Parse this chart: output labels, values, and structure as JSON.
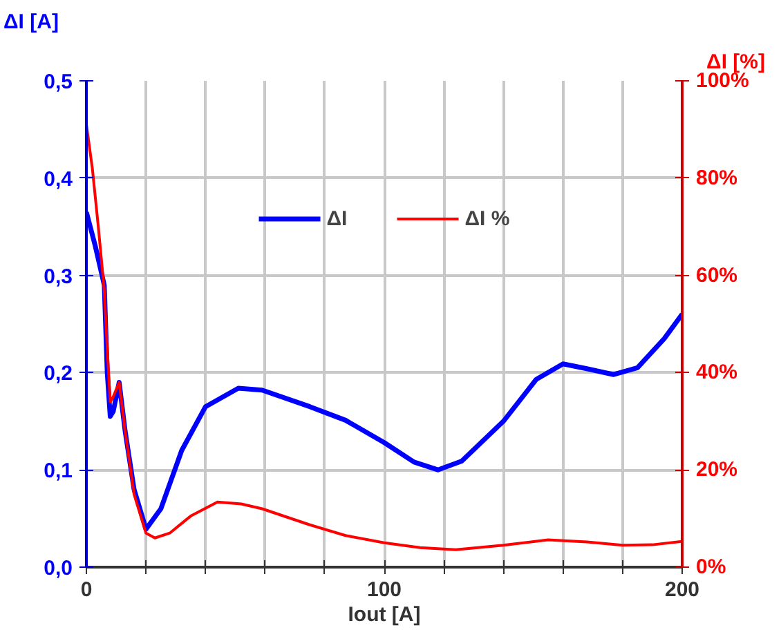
{
  "chart_data": {
    "type": "line",
    "ylabel": "ΔI [A]",
    "y2label": "ΔI [%]",
    "xlabel": "Iout [A]",
    "xlim": [
      0,
      200
    ],
    "xticks": [
      0,
      {
        "value": 20,
        "label": null
      },
      {
        "value": 40,
        "label": null
      },
      {
        "value": 60,
        "label": null
      },
      {
        "value": 80,
        "label": null
      },
      100,
      {
        "value": 120,
        "label": null
      },
      {
        "value": 140,
        "label": null
      },
      {
        "value": 160,
        "label": null
      },
      {
        "value": 180,
        "label": null
      },
      200
    ],
    "ylim": [
      0,
      0.5
    ],
    "yticks": [
      {
        "value": 0,
        "label": "0,0"
      },
      {
        "value": 0.1,
        "label": "0,1"
      },
      {
        "value": 0.2,
        "label": "0,2"
      },
      {
        "value": 0.3,
        "label": "0,3"
      },
      {
        "value": 0.4,
        "label": "0,4"
      },
      {
        "value": 0.5,
        "label": "0,5"
      }
    ],
    "y2lim": [
      0,
      100
    ],
    "y2ticks": [
      {
        "value": 0,
        "label": "0%"
      },
      {
        "value": 20,
        "label": "20%"
      },
      {
        "value": 40,
        "label": "40%"
      },
      {
        "value": 60,
        "label": "60%"
      },
      {
        "value": 80,
        "label": "80%"
      },
      {
        "value": 100,
        "label": "100%"
      }
    ],
    "grid": true,
    "legend": "top",
    "line_style": "solid",
    "series": [
      {
        "name": "ΔI",
        "color": "#0000ff",
        "x": [
          0,
          3,
          6,
          7,
          8,
          9,
          11,
          13,
          16,
          20,
          25,
          32,
          40,
          51,
          59,
          75,
          87,
          100,
          110,
          118,
          126,
          140,
          151,
          160,
          168,
          177,
          185,
          194,
          200
        ],
        "values": [
          0.365,
          0.33,
          0.29,
          0.2,
          0.155,
          0.16,
          0.19,
          0.14,
          0.08,
          0.039,
          0.06,
          0.12,
          0.165,
          0.184,
          0.182,
          0.165,
          0.151,
          0.128,
          0.108,
          0.1,
          0.109,
          0.15,
          0.193,
          0.209,
          0.204,
          0.198,
          0.205,
          0.235,
          0.26
        ]
      },
      {
        "name": "ΔI %",
        "color": "#ff0000",
        "x": [
          0,
          2,
          4,
          6,
          7,
          8,
          9,
          11,
          13,
          16,
          20,
          23,
          28,
          35,
          44,
          52,
          59,
          75,
          87,
          100,
          112,
          124,
          140,
          155,
          168,
          180,
          190,
          200
        ],
        "values": [
          91,
          82,
          70,
          57,
          45,
          34,
          35,
          38,
          28,
          15,
          7,
          6,
          7,
          10.5,
          13.4,
          13,
          12,
          8.7,
          6.5,
          5,
          4,
          3.6,
          4.5,
          5.6,
          5.2,
          4.5,
          4.6,
          5.3
        ],
        "axis": "y2"
      }
    ]
  }
}
